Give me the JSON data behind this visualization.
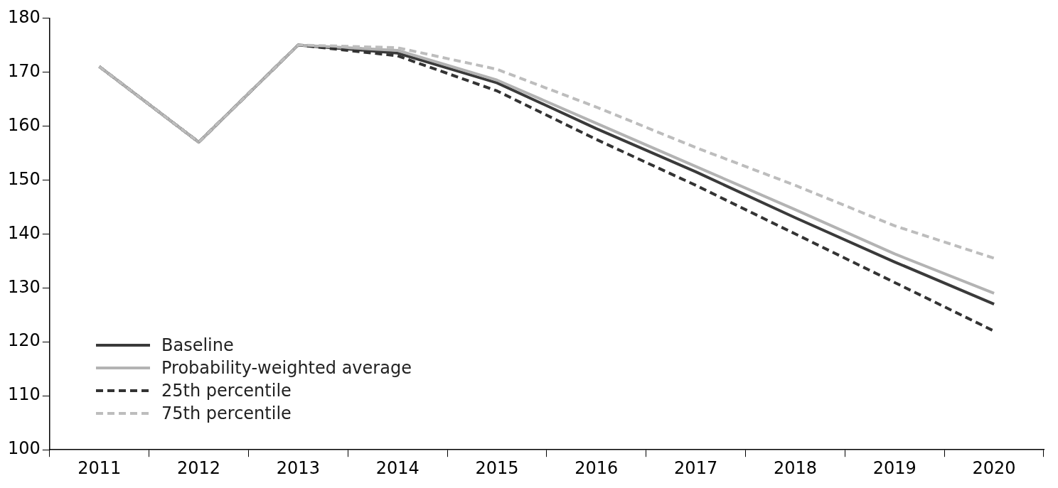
{
  "chart_data": {
    "type": "line",
    "categories": [
      "2011",
      "2012",
      "2013",
      "2014",
      "2015",
      "2016",
      "2017",
      "2018",
      "2019",
      "2020"
    ],
    "series": [
      {
        "name": "Baseline",
        "color": "#3a3a3a",
        "line_style": "solid",
        "values": [
          171,
          157,
          175,
          173.5,
          168,
          159.5,
          151.5,
          143,
          134.8,
          127
        ]
      },
      {
        "name": "Probability-weighted average",
        "color": "#b3b3b3",
        "line_style": "solid",
        "values": [
          171,
          157,
          175,
          174,
          168.5,
          160.5,
          152.5,
          144.5,
          136.3,
          129
        ]
      },
      {
        "name": "25th percentile",
        "color": "#333333",
        "line_style": "dashed",
        "values": [
          171,
          157,
          175,
          173,
          166.5,
          157.5,
          149,
          140,
          131,
          122
        ]
      },
      {
        "name": "75th percentile",
        "color": "#bdbdbd",
        "line_style": "dashed",
        "values": [
          171,
          157,
          175,
          174.5,
          170.5,
          163.5,
          156,
          149,
          141.5,
          135.5
        ]
      }
    ],
    "ylim": [
      100,
      180
    ],
    "yticks": [
      100,
      110,
      120,
      130,
      140,
      150,
      160,
      170,
      180
    ],
    "grid": false,
    "legend": "bottom left",
    "marker": "none"
  }
}
